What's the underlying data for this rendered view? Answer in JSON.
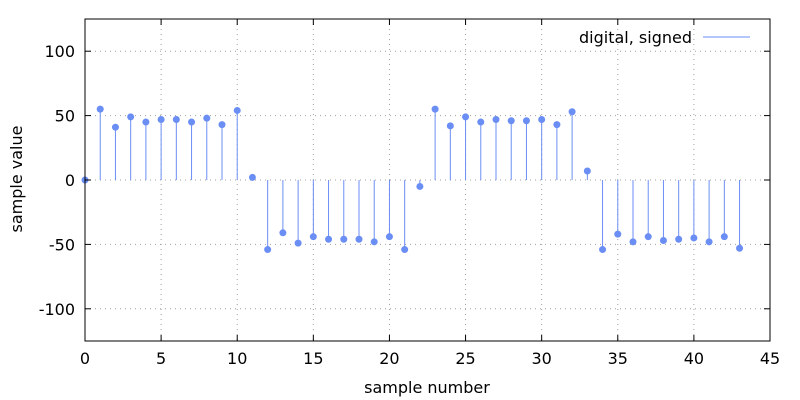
{
  "chart_data": {
    "type": "stem",
    "xlabel": "sample number",
    "ylabel": "sample value",
    "xlim": [
      0,
      45
    ],
    "ylim": [
      -125,
      125
    ],
    "xticks": [
      0,
      5,
      10,
      15,
      20,
      25,
      30,
      35,
      40,
      45
    ],
    "yticks": [
      -100,
      -50,
      0,
      50,
      100
    ],
    "xtick_labels": [
      "0",
      "5",
      "10",
      "15",
      "20",
      "25",
      "30",
      "35",
      "40",
      "45"
    ],
    "ytick_labels": [
      "-100",
      "-50",
      "0",
      "50",
      "100"
    ],
    "grid": true,
    "legend_position": "top-right",
    "series": [
      {
        "name": "digital, signed",
        "color": "#6b8ef5",
        "x": [
          0,
          1,
          2,
          3,
          4,
          5,
          6,
          7,
          8,
          9,
          10,
          11,
          12,
          13,
          14,
          15,
          16,
          17,
          18,
          19,
          20,
          21,
          22,
          23,
          24,
          25,
          26,
          27,
          28,
          29,
          30,
          31,
          32,
          33,
          34,
          35,
          36,
          37,
          38,
          39,
          40,
          41,
          42,
          43
        ],
        "values": [
          0,
          55,
          41,
          49,
          45,
          47,
          47,
          45,
          48,
          43,
          54,
          2,
          -54,
          -41,
          -49,
          -44,
          -46,
          -46,
          -46,
          -48,
          -44,
          -54,
          -5,
          55,
          42,
          49,
          45,
          47,
          46,
          46,
          47,
          43,
          53,
          7,
          -54,
          -42,
          -48,
          -44,
          -47,
          -46,
          -45,
          -48,
          -44,
          -53
        ]
      }
    ]
  }
}
